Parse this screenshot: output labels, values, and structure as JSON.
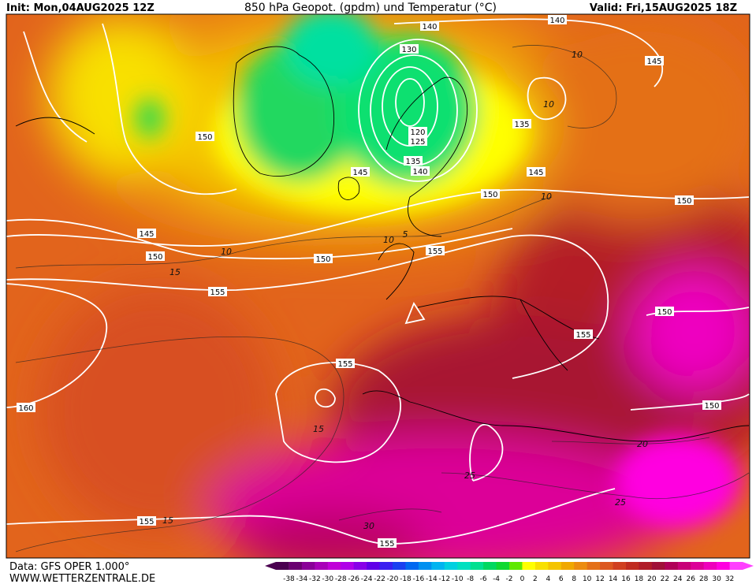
{
  "header": {
    "init": "Init: Mon,04AUG2025 12Z",
    "title": "850 hPa Geopot. (gpdm) und Temperatur (°C)",
    "valid": "Valid: Fri,15AUG2025 18Z"
  },
  "footer": {
    "source": "Data: GFS OPER 1.000°",
    "website": "WWW.WETTERZENTRALE.DE"
  },
  "geopotential_labels": [
    "140",
    "140",
    "130",
    "120",
    "125",
    "135",
    "140",
    "145",
    "150",
    "135",
    "145",
    "150",
    "150",
    "145",
    "150",
    "150",
    "155",
    "155",
    "150",
    "155",
    "155",
    "160",
    "150",
    "155",
    "155",
    "145"
  ],
  "temperature_labels": [
    "10",
    "10",
    "10",
    "10",
    "5",
    "10",
    "15",
    "15",
    "15",
    "20",
    "25",
    "25",
    "30"
  ],
  "colorbar": {
    "labels": [
      "-38",
      "-34",
      "-32",
      "-30",
      "-28",
      "-26",
      "-24",
      "-22",
      "-20",
      "-18",
      "-16",
      "-14",
      "-12",
      "-10",
      "-8",
      "-6",
      "-4",
      "-2",
      "0",
      "2",
      "4",
      "6",
      "8",
      "10",
      "12",
      "14",
      "16",
      "18",
      "20",
      "22",
      "24",
      "26",
      "28",
      "30",
      "32"
    ],
    "colors": [
      "#4a0050",
      "#6a0070",
      "#8a0098",
      "#a800b8",
      "#c000d8",
      "#b000e8",
      "#8800e8",
      "#6000e8",
      "#3a20f0",
      "#1a40f0",
      "#0068f0",
      "#0090f0",
      "#00b4f0",
      "#00d0e0",
      "#00e0c0",
      "#00e090",
      "#00d860",
      "#10d830",
      "#60e800",
      "#ffff00",
      "#f8e000",
      "#f4c400",
      "#f0a800",
      "#ec8c10",
      "#e47018",
      "#dc5820",
      "#d04020",
      "#c02c20",
      "#b01c28",
      "#a01038",
      "#b00058",
      "#c80078",
      "#dc0098",
      "#ee00bc",
      "#ff00e0",
      "#ff40ff"
    ]
  }
}
